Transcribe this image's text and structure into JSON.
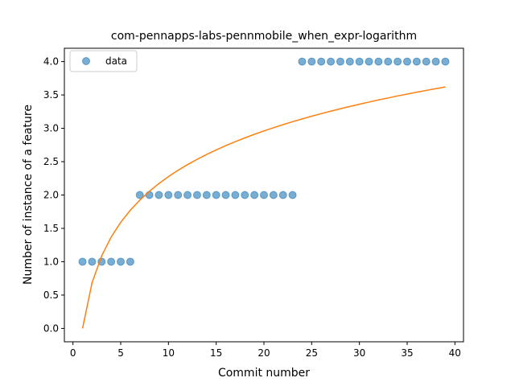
{
  "chart_data": {
    "type": "scatter",
    "title": "com-pennapps-labs-pennmobile_when_expr-logarithm",
    "xlabel": "Commit number",
    "ylabel": "Number of instance of a feature",
    "xlim": [
      -0.9,
      40.9
    ],
    "ylim": [
      -0.2,
      4.2
    ],
    "xticks": [
      0,
      5,
      10,
      15,
      20,
      25,
      30,
      35,
      40
    ],
    "yticks": [
      0.0,
      0.5,
      1.0,
      1.5,
      2.0,
      2.5,
      3.0,
      3.5,
      4.0
    ],
    "xtick_labels": [
      "0",
      "5",
      "10",
      "15",
      "20",
      "25",
      "30",
      "35",
      "40"
    ],
    "ytick_labels": [
      "0.0",
      "0.5",
      "1.0",
      "1.5",
      "2.0",
      "2.5",
      "3.0",
      "3.5",
      "4.0"
    ],
    "grid": false,
    "legend": {
      "position": "top-left",
      "entries": [
        "data"
      ]
    },
    "colors": {
      "data": "#1f77b4",
      "fit": "#ff7f0e"
    },
    "series": [
      {
        "name": "data",
        "kind": "scatter",
        "x": [
          1,
          2,
          3,
          4,
          5,
          6,
          7,
          8,
          9,
          10,
          11,
          12,
          13,
          14,
          15,
          16,
          17,
          18,
          19,
          20,
          21,
          22,
          23,
          24,
          25,
          26,
          27,
          28,
          29,
          30,
          31,
          32,
          33,
          34,
          35,
          36,
          37,
          38,
          39
        ],
        "y": [
          1,
          1,
          1,
          1,
          1,
          1,
          2,
          2,
          2,
          2,
          2,
          2,
          2,
          2,
          2,
          2,
          2,
          2,
          2,
          2,
          2,
          2,
          2,
          4,
          4,
          4,
          4,
          4,
          4,
          4,
          4,
          4,
          4,
          4,
          4,
          4,
          4,
          4,
          4
        ]
      },
      {
        "kind": "line",
        "x": [
          1,
          2,
          3,
          4,
          5,
          6,
          7,
          8,
          9,
          10,
          11,
          12,
          13,
          14,
          15,
          16,
          17,
          18,
          19,
          20,
          21,
          22,
          23,
          24,
          25,
          26,
          27,
          28,
          29,
          30,
          31,
          32,
          33,
          34,
          35,
          36,
          37,
          38,
          39
        ],
        "y": [
          0.0,
          0.685,
          1.086,
          1.37,
          1.591,
          1.771,
          1.923,
          2.055,
          2.172,
          2.276,
          2.37,
          2.456,
          2.535,
          2.608,
          2.676,
          2.74,
          2.8,
          2.856,
          2.91,
          2.961,
          3.009,
          3.055,
          3.099,
          3.141,
          3.181,
          3.22,
          3.257,
          3.293,
          3.328,
          3.361,
          3.393,
          3.425,
          3.455,
          3.485,
          3.513,
          3.541,
          3.568,
          3.594,
          3.62
        ]
      }
    ]
  }
}
